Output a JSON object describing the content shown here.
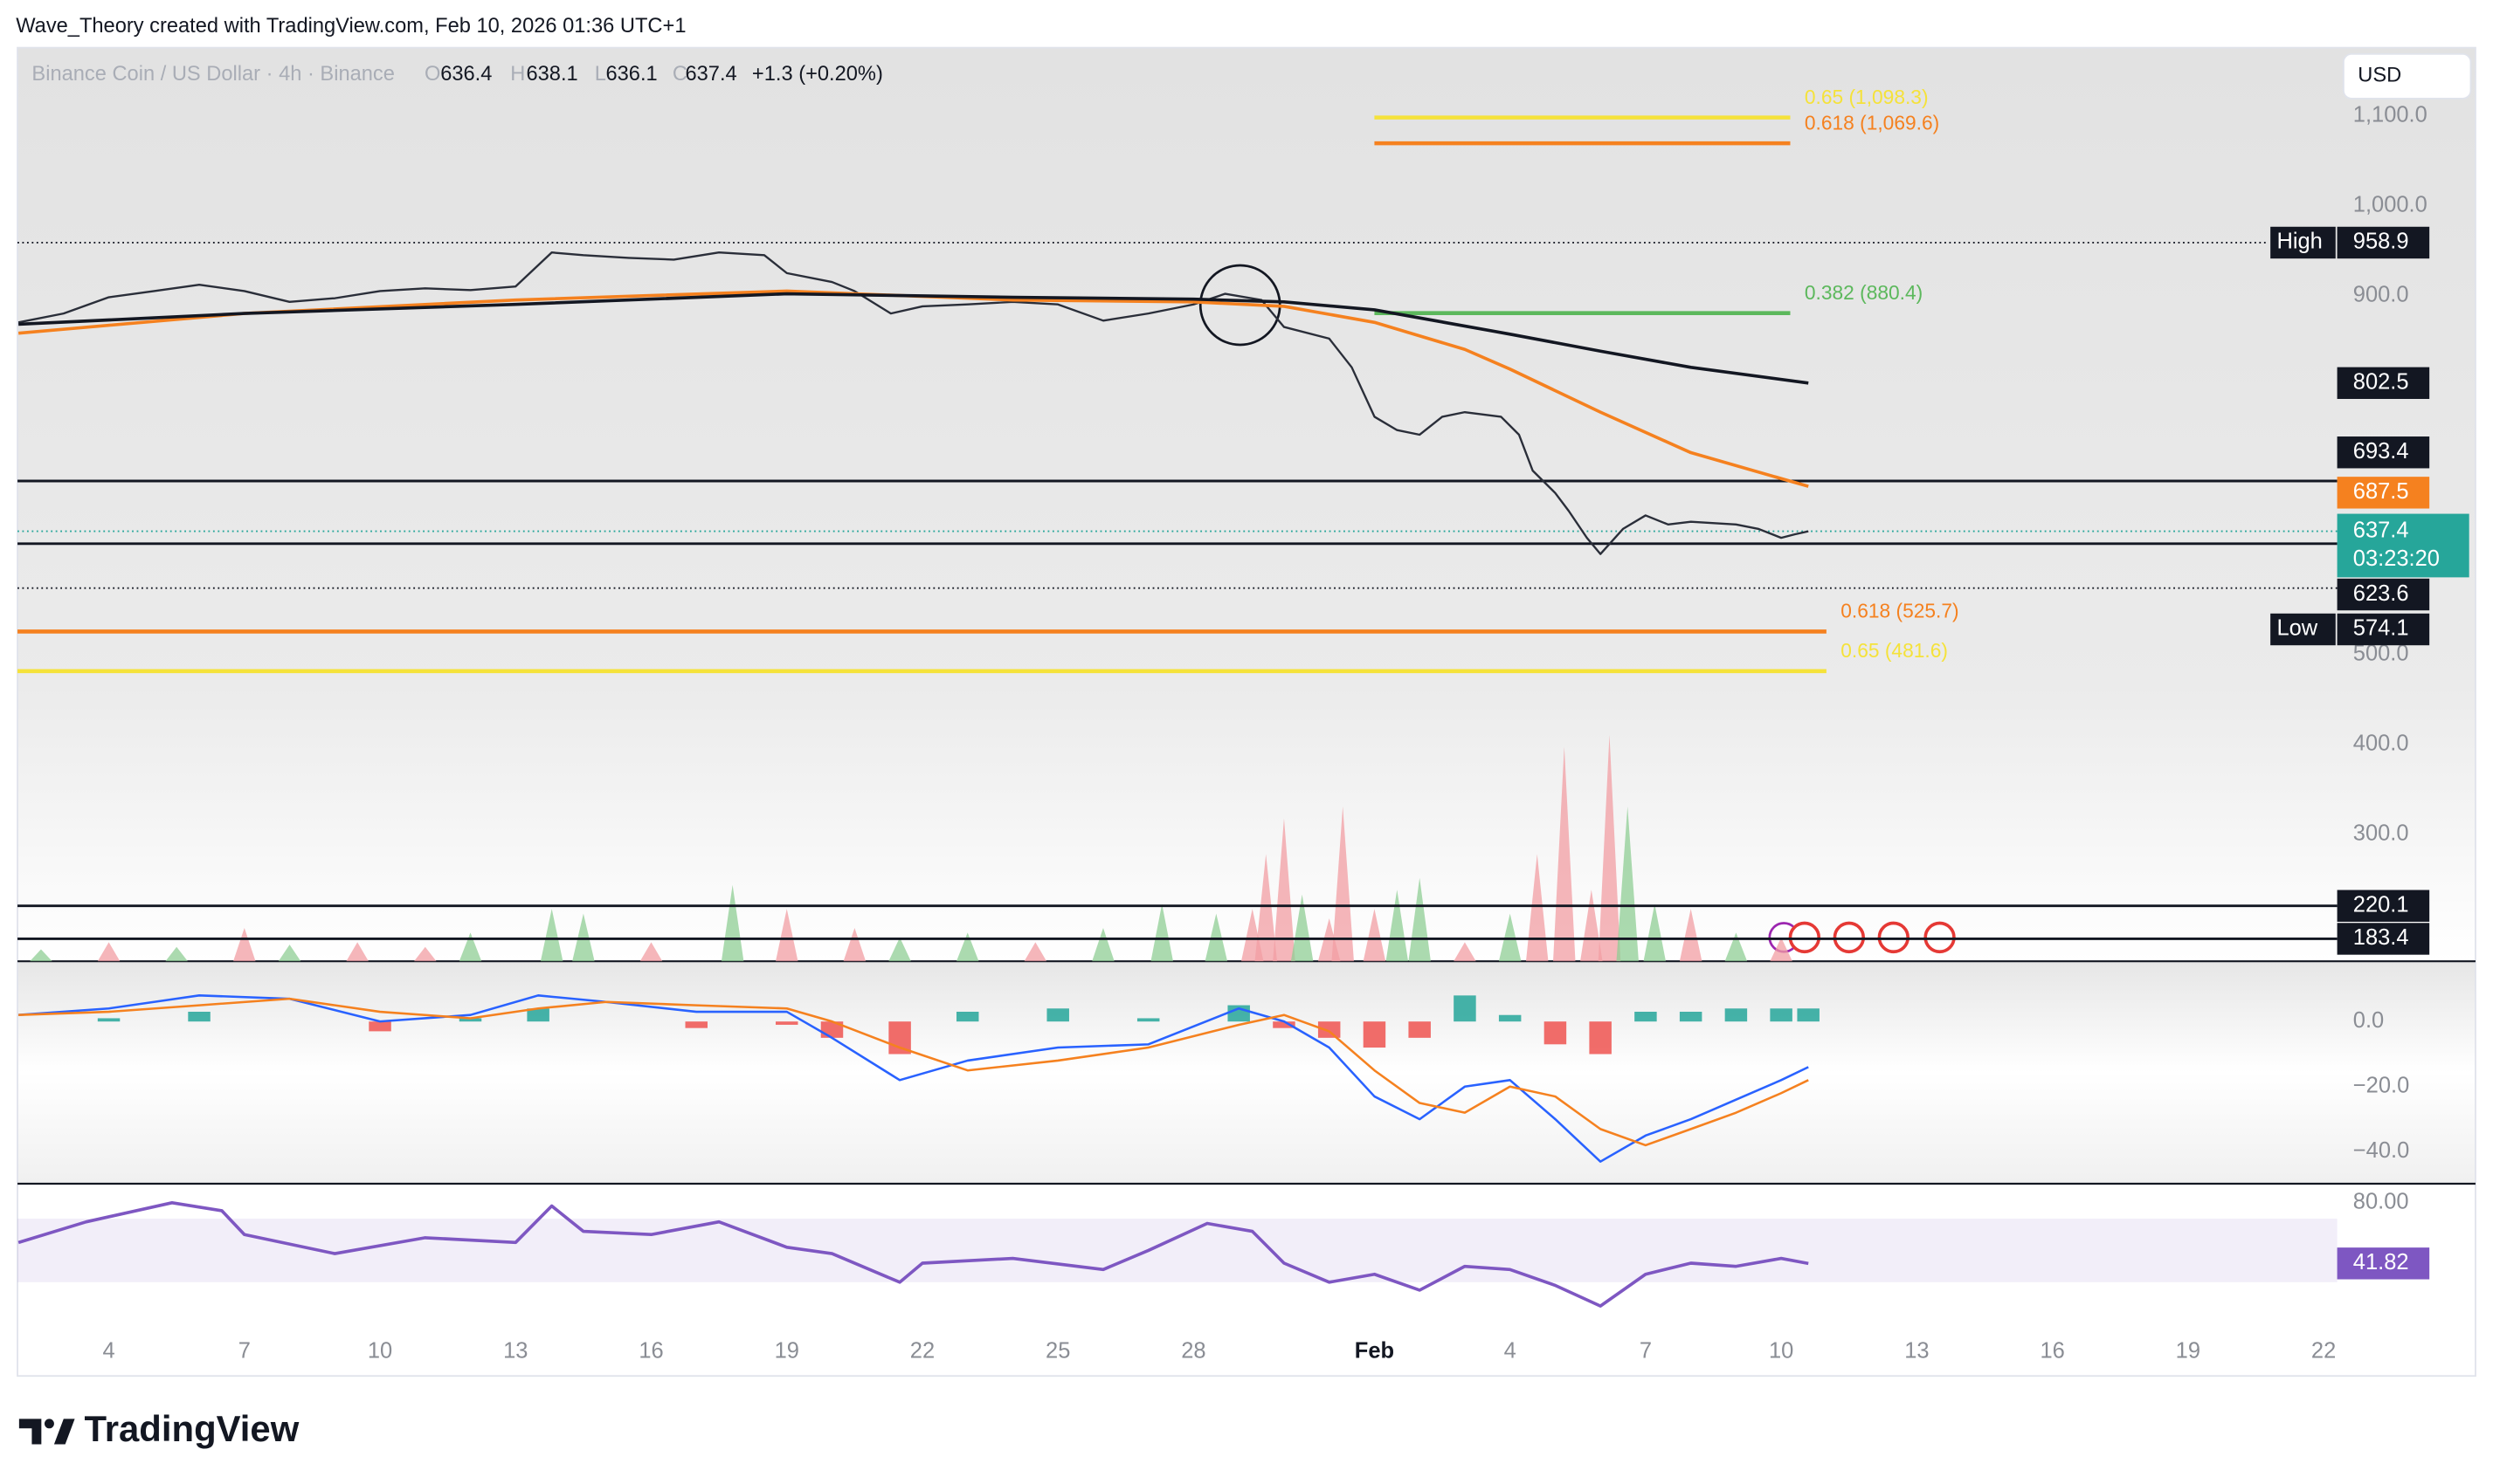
{
  "chart_data": {
    "type": "line",
    "attribution": "Wave_Theory created with TradingView.com, Feb 10, 2026 01:36 UTC+1",
    "currency": "USD",
    "legend": {
      "symbol": "Binance Coin / US Dollar · 4h · Binance",
      "ohlc_labels": [
        "O",
        "H",
        "L",
        "C"
      ],
      "open": 636.4,
      "high": 638.1,
      "low": 636.1,
      "close": 637.4,
      "change": "+1.3 (+0.20%)"
    },
    "brand": "TradingView",
    "xlim": [
      1.98,
      53.3
    ],
    "xticks": [
      4,
      7,
      10,
      13,
      16,
      19,
      22,
      25,
      28,
      {
        "value": 32,
        "label": "Feb"
      },
      {
        "value": 35,
        "label": "4"
      },
      {
        "value": 38,
        "label": "7"
      },
      {
        "value": 41,
        "label": "10"
      },
      {
        "value": 44,
        "label": "13"
      },
      {
        "value": 47,
        "label": "16"
      },
      {
        "value": 50,
        "label": "19"
      },
      {
        "value": 53,
        "label": "22"
      }
    ],
    "price": {
      "ylim": [
        158.4,
        1176.1
      ],
      "yticks": [
        {
          "value": 1100,
          "label": "1,100.0"
        },
        {
          "value": 1000,
          "label": "1,000.0"
        },
        {
          "value": 900,
          "label": "900.0"
        },
        {
          "value": 500,
          "label": "500.0"
        },
        {
          "value": 400,
          "label": "400.0"
        },
        {
          "value": 300,
          "label": "300.0"
        }
      ],
      "grid": false,
      "series": [
        {
          "color": "#2a2e39",
          "x": [
            2,
            3,
            4,
            5,
            6,
            7,
            8,
            9,
            10,
            11,
            12,
            13,
            13.8,
            14.5,
            15.5,
            16.5,
            17.5,
            18.5,
            19,
            20,
            20.5,
            21.3,
            22,
            23,
            24,
            25,
            26,
            27,
            28,
            28.7,
            29.5,
            30,
            31,
            31.5,
            32,
            32.5,
            33,
            33.5,
            34,
            34.8,
            35.2,
            35.5,
            36,
            36.3,
            36.7,
            37,
            37.5,
            38,
            38.5,
            39,
            40,
            40.5,
            41,
            41.3,
            41.6
          ],
          "values": [
            870,
            880,
            898,
            905,
            912,
            905,
            893,
            897,
            905,
            908,
            906,
            910,
            948,
            945,
            942,
            940,
            948,
            945,
            925,
            915,
            905,
            880,
            888,
            890,
            893,
            890,
            872,
            880,
            890,
            902,
            895,
            865,
            852,
            820,
            765,
            750,
            745,
            765,
            770,
            765,
            745,
            705,
            680,
            660,
            630,
            612,
            640,
            655,
            645,
            648,
            645,
            640,
            630,
            634,
            637.4
          ]
        },
        {
          "color": "#f5811f",
          "x": [
            2,
            7,
            13,
            19,
            24,
            28,
            30,
            32,
            34,
            35,
            37,
            39,
            41.6
          ],
          "values": [
            858,
            880,
            895,
            905,
            895,
            893,
            888,
            870,
            840,
            818,
            770,
            725,
            687.5
          ]
        },
        {
          "color": "#131722",
          "x": [
            2,
            7,
            13,
            19,
            24,
            28,
            30,
            32,
            35,
            37,
            39,
            41.6
          ],
          "values": [
            868,
            880,
            890,
            902,
            898,
            896,
            893,
            884,
            857,
            838,
            820,
            802.5
          ]
        }
      ],
      "fib_levels": [
        {
          "label": "0.65 (1,098.3)",
          "value": 1098.3,
          "color": "#f5e23a",
          "x": [
            32,
            41.2
          ]
        },
        {
          "label": "0.618 (1,069.6)",
          "value": 1069.6,
          "color": "#f5811f",
          "x": [
            32,
            41.2
          ]
        },
        {
          "label": "0.382 (880.4)",
          "value": 880.4,
          "color": "#5cb85c",
          "x": [
            32,
            41.2
          ]
        },
        {
          "label": "0.618 (525.7)",
          "value": 525.7,
          "color": "#f5811f",
          "x": [
            1.98,
            42
          ]
        },
        {
          "label": "0.65 (481.6)",
          "value": 481.6,
          "color": "#f5e23a",
          "x": [
            1.98,
            42
          ]
        }
      ],
      "levels": [
        693.4,
        623.6,
        220.1,
        183.4
      ],
      "high": {
        "label": "High",
        "value": 958.9
      },
      "low": {
        "label": "Low",
        "value": 574.1
      },
      "countdown": "03:23:20"
    },
    "volume": {
      "ylim": [
        0,
        100
      ],
      "x": [
        2.5,
        4,
        5.5,
        7,
        8,
        9.5,
        11,
        12,
        13.8,
        14.5,
        16,
        17.8,
        19,
        20.5,
        21.5,
        23,
        24.5,
        26,
        27.3,
        28.5,
        29.3,
        29.6,
        30,
        30.4,
        31,
        31.3,
        32,
        32.5,
        33,
        34,
        35,
        35.6,
        36.2,
        36.8,
        37.2,
        37.6,
        38.2,
        39,
        40,
        41
      ],
      "values": [
        5,
        8,
        6,
        14,
        7,
        8,
        6,
        12,
        22,
        20,
        8,
        32,
        22,
        14,
        10,
        12,
        8,
        14,
        24,
        20,
        22,
        45,
        60,
        28,
        18,
        65,
        22,
        30,
        35,
        8,
        20,
        45,
        90,
        30,
        95,
        65,
        24,
        22,
        12,
        10
      ],
      "colors": [
        "#8fce94",
        "#f29ea3",
        "#8fce94",
        "#f29ea3",
        "#8fce94",
        "#f29ea3",
        "#f29ea3",
        "#8fce94",
        "#8fce94",
        "#8fce94",
        "#f29ea3",
        "#8fce94",
        "#f29ea3",
        "#f29ea3",
        "#8fce94",
        "#8fce94",
        "#f29ea3",
        "#8fce94",
        "#8fce94",
        "#8fce94",
        "#f29ea3",
        "#f29ea3",
        "#f29ea3",
        "#8fce94",
        "#f29ea3",
        "#f29ea3",
        "#f29ea3",
        "#8fce94",
        "#8fce94",
        "#f29ea3",
        "#8fce94",
        "#f29ea3",
        "#f29ea3",
        "#f29ea3",
        "#f29ea3",
        "#8fce94",
        "#8fce94",
        "#f29ea3",
        "#8fce94",
        "#f29ea3"
      ]
    },
    "macd": {
      "ylim": [
        -49.8,
        18.5
      ],
      "yticks": [
        {
          "value": 0,
          "label": "0.0"
        },
        {
          "value": -20,
          "label": "−20.0"
        },
        {
          "value": -40,
          "label": "−40.0"
        }
      ],
      "x": [
        2,
        4,
        6,
        8,
        10,
        12,
        13.5,
        15,
        17,
        19,
        20,
        21.5,
        23,
        25,
        27,
        29,
        30,
        31,
        32,
        33,
        34,
        35,
        36,
        37,
        38,
        39,
        40,
        41,
        41.6
      ],
      "series": [
        {
          "color": "#2962ff",
          "values": [
            2,
            4,
            8,
            7,
            0,
            2,
            8,
            6,
            3,
            3,
            -5,
            -18,
            -12,
            -8,
            -7,
            4,
            0,
            -8,
            -23,
            -30,
            -20,
            -18,
            -30,
            -43,
            -35,
            -30,
            -24,
            -18,
            -14
          ]
        },
        {
          "color": "#f5811f",
          "values": [
            2,
            3,
            5,
            7,
            3,
            1,
            4,
            6,
            5,
            4,
            0,
            -8,
            -15,
            -12,
            -8,
            -1,
            2,
            -3,
            -15,
            -25,
            -28,
            -20,
            -23,
            -33,
            -38,
            -33,
            -28,
            -22,
            -18
          ]
        }
      ],
      "histogram": [
        0,
        1,
        3,
        0,
        -3,
        1,
        4,
        0,
        -2,
        -1,
        -5,
        -10,
        3,
        4,
        1,
        5,
        -2,
        -5,
        -8,
        -5,
        8,
        2,
        -7,
        -10,
        3,
        3,
        4,
        4,
        4
      ]
    },
    "rsi": {
      "ylim": [
        -3,
        92
      ],
      "yticks": [
        {
          "value": 80,
          "label": "80.00"
        }
      ],
      "band": [
        30,
        70
      ],
      "color": "#7e57c2",
      "x": [
        2,
        3.5,
        5.4,
        6.5,
        7,
        9,
        11,
        13,
        13.8,
        14.5,
        16,
        17.5,
        19,
        20,
        21.5,
        22,
        24,
        26,
        27,
        28.3,
        29.3,
        30,
        31,
        32,
        33,
        34,
        35,
        36,
        37,
        38,
        39,
        40,
        41,
        41.6
      ],
      "values": [
        55,
        68,
        80,
        75,
        60,
        48,
        58,
        55,
        78,
        62,
        60,
        68,
        52,
        48,
        30,
        42,
        45,
        38,
        50,
        67,
        62,
        42,
        30,
        35,
        25,
        40,
        38,
        28,
        15,
        35,
        42,
        40,
        45,
        41.82
      ]
    }
  }
}
